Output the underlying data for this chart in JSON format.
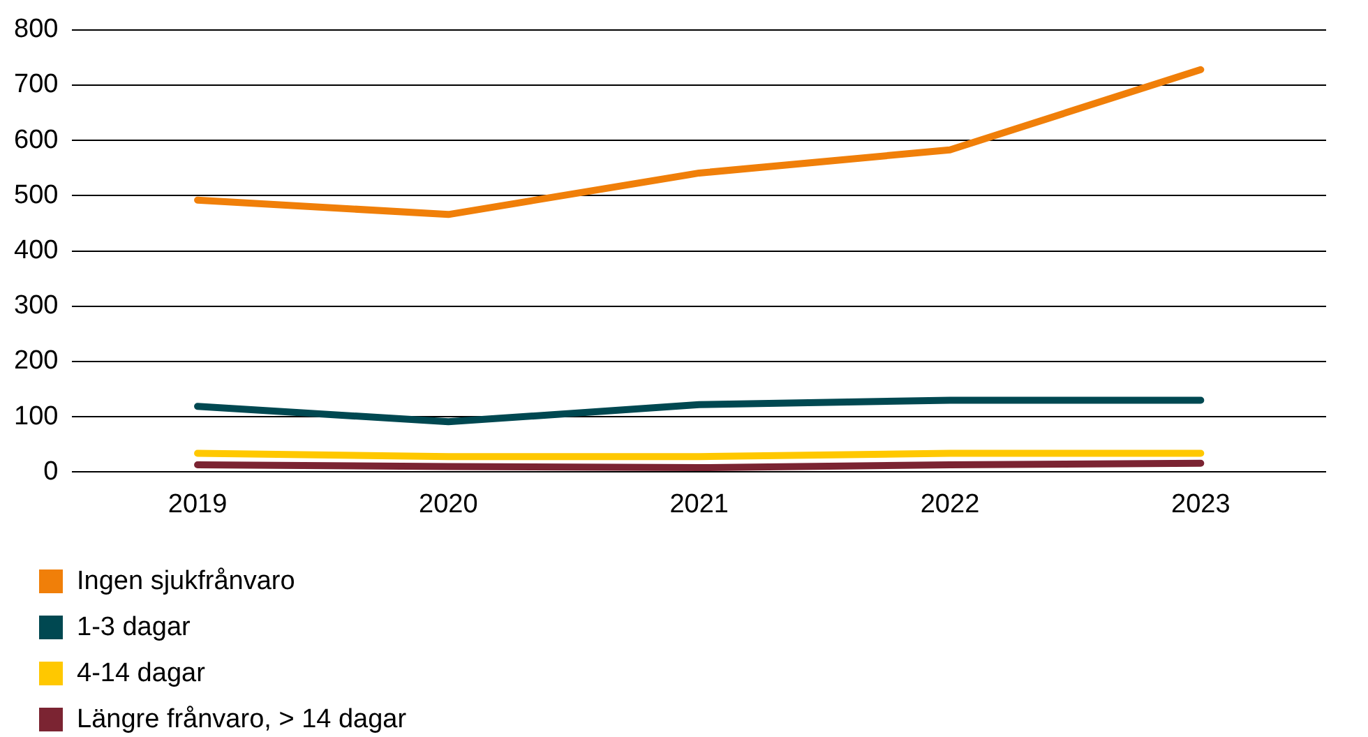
{
  "chart_data": {
    "type": "line",
    "categories": [
      "2019",
      "2020",
      "2021",
      "2022",
      "2023"
    ],
    "series": [
      {
        "name": "Ingen sjukfrånvaro",
        "color": "#f07f09",
        "values": [
          492,
          466,
          541,
          583,
          728
        ]
      },
      {
        "name": "1-3 dagar",
        "color": "#004851",
        "values": [
          119,
          91,
          122,
          130,
          130
        ]
      },
      {
        "name": "4-14 dagar",
        "color": "#ffc800",
        "values": [
          34,
          28,
          28,
          34,
          34
        ]
      },
      {
        "name": "Längre frånvaro, > 14 dagar",
        "color": "#7b2432",
        "values": [
          13,
          10,
          8,
          13,
          16
        ]
      }
    ],
    "ylim": [
      0,
      800
    ],
    "yticks": [
      0,
      100,
      200,
      300,
      400,
      500,
      600,
      700,
      800
    ],
    "grid": "y",
    "legend": "bottom",
    "marker": "none",
    "line_style": "solid"
  }
}
